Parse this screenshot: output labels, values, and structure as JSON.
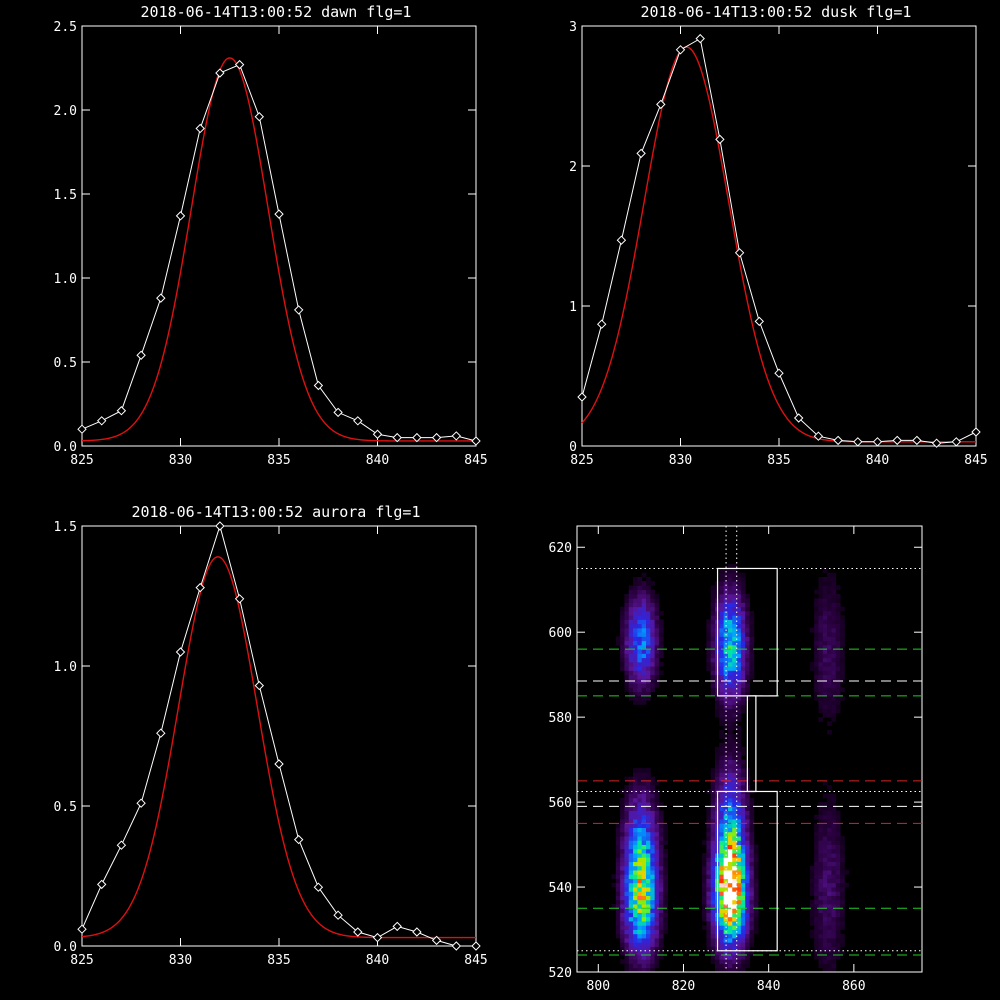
{
  "colors": {
    "background": "#000000",
    "axes": "#ffffff",
    "data": "#ffffff",
    "fit": "#dd1111",
    "green": "#22cc22",
    "red": "#dd2222"
  },
  "chart_data": [
    {
      "type": "line",
      "title": "2018-06-14T13:00:52 dawn flg=1",
      "xlim": [
        825,
        845
      ],
      "ylim": [
        0,
        2.5
      ],
      "xticks": [
        "825",
        "830",
        "835",
        "840",
        "845"
      ],
      "yticks": [
        "0.0",
        "0.5",
        "1.0",
        "1.5",
        "2.0",
        "2.5"
      ],
      "series": [
        {
          "role": "data",
          "x": [
            825,
            826,
            827,
            828,
            829,
            830,
            831,
            832,
            833,
            834,
            835,
            836,
            837,
            838,
            839,
            840,
            841,
            842,
            843,
            844,
            845
          ],
          "y": [
            0.1,
            0.15,
            0.21,
            0.54,
            0.88,
            1.37,
            1.89,
            2.22,
            2.27,
            1.96,
            1.38,
            0.81,
            0.36,
            0.2,
            0.15,
            0.07,
            0.05,
            0.05,
            0.05,
            0.06,
            0.03
          ]
        },
        {
          "role": "fit",
          "model": "gaussian",
          "amplitude": 2.28,
          "center": 832.5,
          "sigma": 1.95,
          "baseline": 0.03
        }
      ]
    },
    {
      "type": "line",
      "title": "2018-06-14T13:00:52 dusk flg=1",
      "xlim": [
        825,
        845
      ],
      "ylim": [
        0,
        3
      ],
      "xticks": [
        "825",
        "830",
        "835",
        "840",
        "845"
      ],
      "yticks": [
        "0",
        "1",
        "2",
        "3"
      ],
      "series": [
        {
          "role": "data",
          "x": [
            825,
            826,
            827,
            828,
            829,
            830,
            831,
            832,
            833,
            834,
            835,
            836,
            837,
            838,
            839,
            840,
            841,
            842,
            843,
            844,
            845
          ],
          "y": [
            0.35,
            0.87,
            1.47,
            2.09,
            2.44,
            2.83,
            2.91,
            2.19,
            1.38,
            0.89,
            0.52,
            0.2,
            0.07,
            0.04,
            0.03,
            0.03,
            0.04,
            0.04,
            0.02,
            0.03,
            0.1
          ]
        },
        {
          "role": "fit",
          "model": "gaussian",
          "amplitude": 2.82,
          "center": 830.3,
          "sigma": 2.15,
          "baseline": 0.03
        }
      ]
    },
    {
      "type": "line",
      "title": "2018-06-14T13:00:52 aurora flg=1",
      "xlim": [
        825,
        845
      ],
      "ylim": [
        0,
        1.5
      ],
      "xticks": [
        "825",
        "830",
        "835",
        "840",
        "845"
      ],
      "yticks": [
        "0.0",
        "0.5",
        "1.0",
        "1.5"
      ],
      "series": [
        {
          "role": "data",
          "x": [
            825,
            826,
            827,
            828,
            829,
            830,
            831,
            832,
            833,
            834,
            835,
            836,
            837,
            838,
            839,
            840,
            841,
            842,
            843,
            844,
            845
          ],
          "y": [
            0.06,
            0.22,
            0.36,
            0.51,
            0.76,
            1.05,
            1.28,
            1.5,
            1.24,
            0.93,
            0.65,
            0.38,
            0.21,
            0.11,
            0.05,
            0.03,
            0.07,
            0.05,
            0.02,
            0.0,
            0.0
          ]
        },
        {
          "role": "fit",
          "model": "gaussian",
          "amplitude": 1.36,
          "center": 831.9,
          "sigma": 2.0,
          "baseline": 0.03
        }
      ]
    },
    {
      "type": "heatmap",
      "title": "",
      "xlim": [
        795,
        876
      ],
      "ylim": [
        520,
        625
      ],
      "xticks": [
        "800",
        "820",
        "840",
        "860"
      ],
      "yticks": [
        "520",
        "540",
        "560",
        "580",
        "600",
        "620"
      ],
      "blobs": [
        {
          "x": 810,
          "y": 536,
          "sx": 2.6,
          "sy": 8,
          "amp": 0.62
        },
        {
          "x": 810,
          "y": 549,
          "sx": 2.6,
          "sy": 9,
          "amp": 0.42
        },
        {
          "x": 810,
          "y": 598,
          "sx": 2.4,
          "sy": 7,
          "amp": 0.45
        },
        {
          "x": 831,
          "y": 538,
          "sx": 2.6,
          "sy": 8,
          "amp": 0.95
        },
        {
          "x": 831,
          "y": 553,
          "sx": 2.4,
          "sy": 10,
          "amp": 0.5
        },
        {
          "x": 831,
          "y": 597,
          "sx": 2.4,
          "sy": 8,
          "amp": 0.6
        },
        {
          "x": 854,
          "y": 540,
          "sx": 2.6,
          "sy": 14,
          "amp": 0.14
        },
        {
          "x": 854,
          "y": 596,
          "sx": 2.6,
          "sy": 12,
          "amp": 0.12
        }
      ],
      "boxes": [
        {
          "x0": 828,
          "x1": 842,
          "y0": 585,
          "y1": 615
        },
        {
          "x0": 828,
          "x1": 842,
          "y0": 525,
          "y1": 562.5
        },
        {
          "x0": 835,
          "x1": 837,
          "y0": 562.5,
          "y1": 585
        }
      ],
      "hlines": [
        {
          "y": 615,
          "color": "white",
          "dash": "dot"
        },
        {
          "y": 596,
          "color": "green",
          "dash": "dash"
        },
        {
          "y": 588.5,
          "color": "white",
          "dash": "dash"
        },
        {
          "y": 585,
          "color": "green",
          "dash": "dash"
        },
        {
          "y": 565,
          "color": "red",
          "dash": "dash"
        },
        {
          "y": 562.5,
          "color": "white",
          "dash": "dot"
        },
        {
          "y": 559,
          "color": "white",
          "dash": "dash"
        },
        {
          "y": 555,
          "color": "red",
          "dash": "dash"
        },
        {
          "y": 535,
          "color": "green",
          "dash": "dash"
        },
        {
          "y": 525,
          "color": "white",
          "dash": "dot"
        },
        {
          "y": 524,
          "color": "green",
          "dash": "dash"
        }
      ],
      "vlines": [
        {
          "x": 830,
          "color": "white",
          "dash": "dot"
        },
        {
          "x": 832.5,
          "color": "white",
          "dash": "dot"
        }
      ]
    }
  ]
}
